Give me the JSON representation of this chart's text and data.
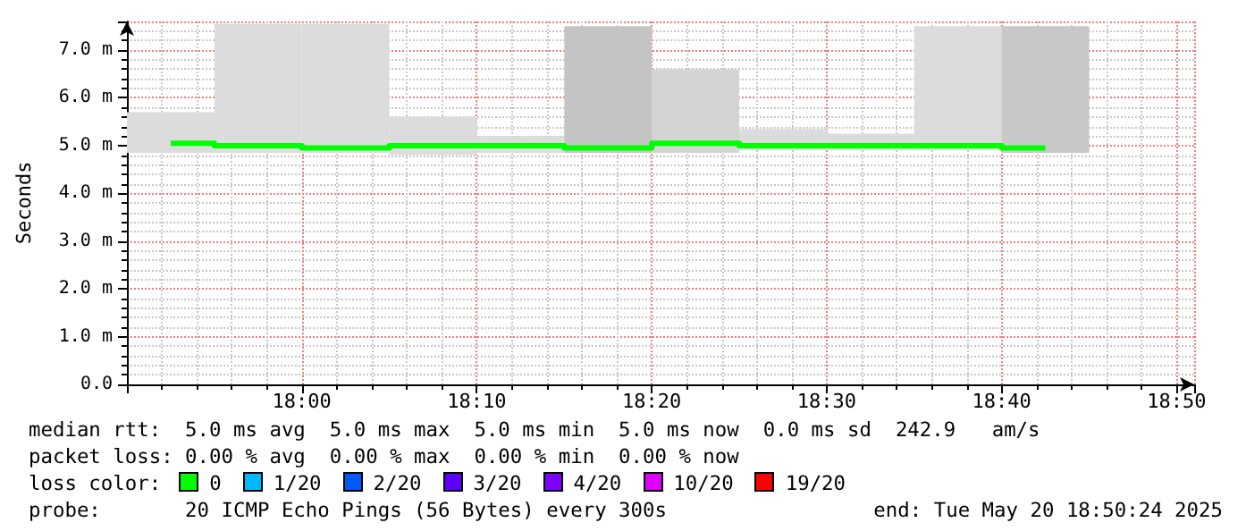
{
  "chart_data": {
    "type": "bar",
    "ylabel": "Seconds",
    "x": [
      "2025-05-20T17:52:30",
      "2025-05-20T17:57:30",
      "2025-05-20T18:02:30",
      "2025-05-20T18:07:30",
      "2025-05-20T18:12:30",
      "2025-05-20T18:17:30",
      "2025-05-20T18:22:30",
      "2025-05-20T18:27:30",
      "2025-05-20T18:32:30",
      "2025-05-20T18:37:30",
      "2025-05-20T18:42:30"
    ],
    "series": [
      {
        "colors": [
          "#dcdcdc",
          "#dcdcdc",
          "#dcdcdc",
          "#dcdcdc",
          "#dcdcdc",
          "#c4c4c4",
          "#d4d4d4",
          "#dcdcdc",
          "#dcdcdc",
          "#dcdcdc",
          "#c8c8c8"
        ],
        "base": [
          4.85,
          4.85,
          4.85,
          4.8,
          4.85,
          4.85,
          4.85,
          4.9,
          4.9,
          4.9,
          4.85
        ],
        "values": [
          0.85,
          2.7,
          2.7,
          0.8,
          0.35,
          2.65,
          1.75,
          0.45,
          0.35,
          2.6,
          2.65
        ]
      },
      {
        "type": "step",
        "color": "#00ff00",
        "values": [
          5.05,
          5.0,
          4.95,
          5.0,
          5.0,
          4.95,
          5.05,
          5.0,
          5.0,
          5.0,
          4.95
        ]
      }
    ],
    "xlim": [
      "2025-05-20T17:50",
      "2025-05-20T18:51"
    ],
    "xticks": [
      {
        "value": "2025-05-20T18:00",
        "label": "18:00"
      },
      {
        "value": "2025-05-20T18:10",
        "label": "18:10"
      },
      {
        "value": "2025-05-20T18:20",
        "label": "18:20"
      },
      {
        "value": "2025-05-20T18:30",
        "label": "18:30"
      },
      {
        "value": "2025-05-20T18:40",
        "label": "18:40"
      },
      {
        "value": "2025-05-20T18:50",
        "label": "18:50"
      }
    ],
    "ylim": [
      0,
      7.6
    ],
    "yticks": [
      {
        "value": 0,
        "label": "0.0"
      },
      {
        "value": 1,
        "label": "1.0 m"
      },
      {
        "value": 2,
        "label": "2.0 m"
      },
      {
        "value": 3,
        "label": "3.0 m"
      },
      {
        "value": 4,
        "label": "4.0 m"
      },
      {
        "value": 5,
        "label": "5.0 m"
      },
      {
        "value": 6,
        "label": "6.0 m"
      },
      {
        "value": 7,
        "label": "7.0 m"
      }
    ],
    "grid": true,
    "annotations": [
      "median rtt:  5.0 ms avg  5.0 ms max  5.0 ms min  5.0 ms now  0.0 ms sd  242.9   am/s",
      "packet loss: 0.00 % avg  0.00 % max  0.00 % min  0.00 % now",
      "loss color:",
      "0",
      "1/20",
      "2/20",
      "3/20",
      "4/20",
      "10/20",
      "19/20",
      "probe:       20 ICMP Echo Pings (56 Bytes) every 300s",
      "end: Tue May 20 18:50:24 2025"
    ]
  }
}
